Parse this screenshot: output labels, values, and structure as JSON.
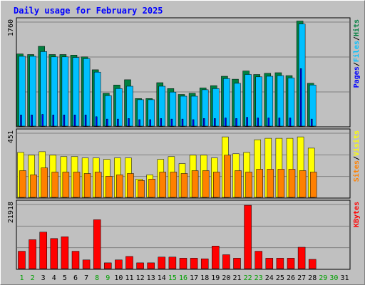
{
  "chart_data": {
    "type": "bar",
    "title": "Daily usage for February 2025",
    "days": [
      "1",
      "2",
      "3",
      "4",
      "5",
      "6",
      "7",
      "8",
      "9",
      "10",
      "11",
      "12",
      "13",
      "14",
      "15",
      "16",
      "17",
      "18",
      "19",
      "20",
      "21",
      "22",
      "23",
      "24",
      "25",
      "26",
      "27",
      "28",
      "29",
      "30",
      "31"
    ],
    "weekend_days": [
      1,
      2,
      8,
      9,
      15,
      16,
      22,
      23,
      29,
      30
    ],
    "panels": [
      {
        "id": "hits-files-pages",
        "ymax_label": "1760",
        "ymax": 1760,
        "legend": [
          "Pages",
          "Files",
          "Hits"
        ],
        "series": [
          {
            "name": "Hits",
            "color": "#008040",
            "values": [
              1230,
              1220,
              1360,
              1220,
              1220,
              1210,
              1180,
              960,
              560,
              700,
              790,
              470,
              470,
              740,
              640,
              540,
              560,
              650,
              690,
              850,
              800,
              940,
              880,
              900,
              910,
              860,
              1790,
              730,
              0,
              0,
              0
            ]
          },
          {
            "name": "Files",
            "color": "#00c0ff",
            "values": [
              1190,
              1190,
              1270,
              1180,
              1180,
              1170,
              1150,
              920,
              520,
              640,
              680,
              450,
              450,
              680,
              580,
              510,
              510,
              620,
              640,
              810,
              730,
              880,
              840,
              850,
              860,
              820,
              1740,
              700,
              0,
              0,
              0
            ]
          },
          {
            "name": "Pages",
            "color": "#0000ff",
            "values": [
              190,
              190,
              200,
              190,
              190,
              190,
              190,
              160,
              120,
              120,
              130,
              110,
              110,
              130,
              120,
              120,
              110,
              130,
              130,
              140,
              130,
              150,
              140,
              140,
              140,
              140,
              980,
              120,
              0,
              0,
              0
            ]
          }
        ]
      },
      {
        "id": "visits-sites",
        "ymax_label": "451",
        "ymax": 451,
        "legend": [
          "Sites",
          "Visits"
        ],
        "series": [
          {
            "name": "Visits",
            "color": "#ffff00",
            "values": [
              320,
              300,
              325,
              300,
              290,
              290,
              280,
              280,
              270,
              280,
              280,
              130,
              160,
              270,
              290,
              240,
              300,
              300,
              280,
              430,
              310,
              320,
              410,
              420,
              420,
              420,
              430,
              350,
              0,
              0,
              0
            ]
          },
          {
            "name": "Sites",
            "color": "#ff8000",
            "values": [
              190,
              160,
              210,
              180,
              180,
              180,
              170,
              180,
              150,
              160,
              170,
              120,
              130,
              180,
              180,
              170,
              190,
              190,
              180,
              300,
              190,
              180,
              200,
              200,
              200,
              200,
              190,
              180,
              0,
              0,
              0
            ]
          }
        ]
      },
      {
        "id": "kbytes",
        "ymax_label": "21918",
        "ymax": 21918,
        "legend": [
          "KBytes"
        ],
        "series": [
          {
            "name": "KBytes",
            "color": "#ff0000",
            "values": [
              6000,
              10000,
              12600,
              10400,
              11000,
              6000,
              3000,
              16900,
              2000,
              3000,
              4200,
              2000,
              2000,
              4000,
              4000,
              3600,
              3600,
              3400,
              7800,
              4800,
              3600,
              21900,
              6000,
              3600,
              3600,
              3600,
              7400,
              3200,
              0,
              0,
              0
            ]
          }
        ]
      }
    ],
    "colors": {
      "title": "#0000ff",
      "weekday_label": "#000000",
      "weekend_label": "#00a000",
      "panel_bg": "#c0c0c0",
      "gridline": "#808080"
    }
  }
}
